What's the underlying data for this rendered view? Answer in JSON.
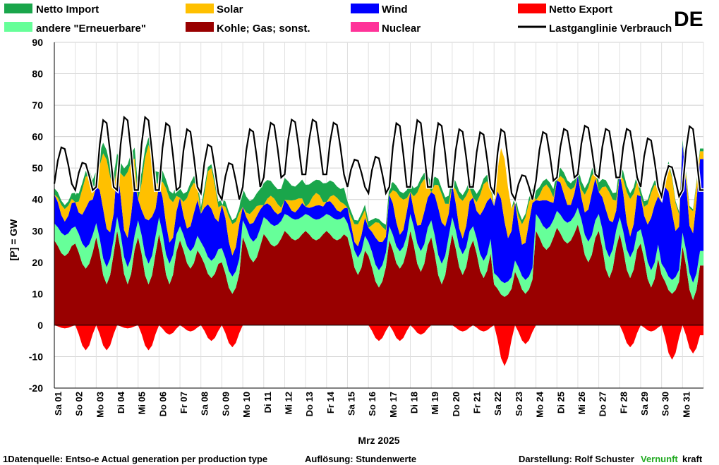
{
  "country": "DE",
  "legend": [
    {
      "key": "netto_import",
      "label": "Netto Import",
      "color": "#1aa64b"
    },
    {
      "key": "solar",
      "label": "Solar",
      "color": "#ffc000"
    },
    {
      "key": "wind",
      "label": "Wind",
      "color": "#0000ff"
    },
    {
      "key": "netto_export",
      "label": "Netto Export",
      "color": "#ff0000"
    },
    {
      "key": "andere",
      "label": "andere \"Erneuerbare\"",
      "color": "#66ff99"
    },
    {
      "key": "kohle",
      "label": "Kohle; Gas; sonst.",
      "color": "#990000"
    },
    {
      "key": "nuclear",
      "label": "Nuclear",
      "color": "#ff3399"
    },
    {
      "key": "last",
      "label": "Lastganglinie Verbrauch",
      "color": "#000000"
    }
  ],
  "chart_data": {
    "type": "area",
    "ylabel": "[P]  =  GW",
    "xlabel": "Mrz 2025",
    "ylim": [
      -20,
      90
    ],
    "yticks": [
      -20,
      -10,
      0,
      10,
      20,
      30,
      40,
      50,
      60,
      70,
      80,
      90
    ],
    "grid": true,
    "legend_position": "top",
    "categories": [
      "Sa 01",
      "So 02",
      "Mo 03",
      "Di 04",
      "Mi 05",
      "Do 06",
      "Fr 07",
      "Sa 08",
      "So 09",
      "Mo 10",
      "Di 11",
      "Mi 12",
      "Do 13",
      "Fr 14",
      "Sa 15",
      "So 16",
      "Mo 17",
      "Di 18",
      "Mi 19",
      "Do 20",
      "Fr 21",
      "Sa 22",
      "So 23",
      "Mo 24",
      "Di 25",
      "Mi 26",
      "Do 27",
      "Fr 28",
      "Sa 29",
      "So 30",
      "Mo 31"
    ],
    "series": [
      {
        "name": "Kohle; Gas; sonst.",
        "daily_max": [
          27,
          26,
          28,
          30,
          28,
          29,
          27,
          22,
          20,
          28,
          29,
          30,
          30,
          30,
          28,
          22,
          27,
          30,
          28,
          29,
          27,
          13,
          17,
          30,
          31,
          32,
          30,
          29,
          26,
          16,
          25
        ],
        "daily_min": [
          22,
          18,
          13,
          13,
          13,
          13,
          18,
          15,
          10,
          20,
          25,
          27,
          27,
          27,
          16,
          12,
          18,
          17,
          13,
          16,
          15,
          9,
          10,
          24,
          26,
          20,
          15,
          15,
          12,
          10,
          8
        ]
      },
      {
        "name": "andere \"Erneuerbare\"",
        "values": [
          6,
          6,
          5,
          5,
          6,
          6,
          5,
          5,
          5,
          6,
          6,
          6,
          6,
          6,
          5,
          5,
          5,
          6,
          6,
          6,
          5,
          4,
          4,
          6,
          6,
          6,
          6,
          6,
          5,
          4,
          5
        ]
      },
      {
        "name": "Wind",
        "values": [
          8,
          12,
          14,
          15,
          12,
          10,
          10,
          15,
          12,
          6,
          5,
          4,
          4,
          4,
          5,
          8,
          9,
          9,
          13,
          9,
          15,
          24,
          18,
          8,
          9,
          12,
          11,
          12,
          16,
          24,
          26
        ]
      },
      {
        "name": "Solar",
        "peak": [
          4,
          10,
          22,
          21,
          24,
          14,
          12,
          13,
          10,
          4,
          4,
          4,
          4,
          4,
          7,
          6,
          12,
          13,
          9,
          12,
          8,
          20,
          8,
          5,
          6,
          7,
          9,
          12,
          8,
          11,
          7
        ]
      },
      {
        "name": "Netto Import",
        "values": [
          2,
          3,
          5,
          4,
          4,
          4,
          3,
          2,
          2,
          6,
          7,
          7,
          7,
          6,
          2,
          2,
          3,
          3,
          3,
          3,
          3,
          0,
          2,
          3,
          3,
          3,
          3,
          3,
          2,
          1,
          1
        ]
      },
      {
        "name": "Netto Export",
        "min": [
          -1,
          -8,
          -8,
          -1,
          -8,
          -3,
          -2,
          -5,
          -7,
          0,
          0,
          0,
          0,
          0,
          0,
          -5,
          -5,
          -3,
          0,
          -2,
          -2,
          -13,
          -6,
          0,
          0,
          0,
          0,
          -7,
          -2,
          -11,
          -9
        ]
      },
      {
        "name": "Lastganglinie Verbrauch",
        "daily_max": [
          57,
          52,
          66,
          67,
          67,
          65,
          63,
          58,
          52,
          63,
          65,
          66,
          66,
          65,
          53,
          54,
          65,
          66,
          65,
          63,
          62,
          63,
          48,
          62,
          63,
          64,
          63,
          63,
          60,
          51,
          64
        ],
        "daily_min": [
          45,
          43,
          44,
          43,
          43,
          43,
          44,
          42,
          40,
          44,
          47,
          48,
          48,
          48,
          44,
          42,
          44,
          44,
          44,
          44,
          44,
          42,
          40,
          46,
          47,
          48,
          47,
          47,
          44,
          41,
          43
        ]
      }
    ]
  },
  "footer": {
    "source": "1Datenquelle: Entso-e  Actual generation per production type",
    "resolution": "Auflösung: Stundenwerte",
    "author": "Darstellung:  Rolf Schuster",
    "brand_green": "Vernunft",
    "brand_black": "kraft"
  }
}
